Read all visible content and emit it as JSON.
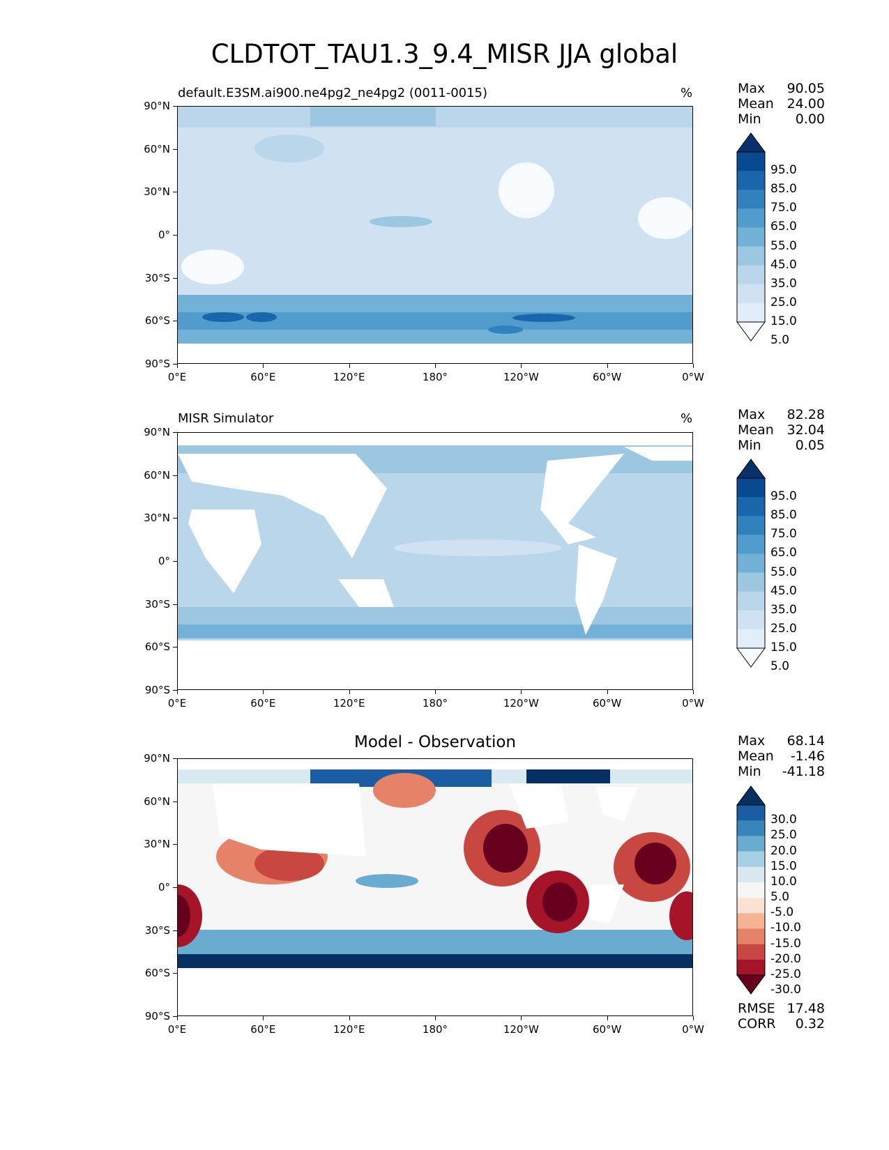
{
  "title": "CLDTOT_TAU1.3_9.4_MISR JJA global",
  "colors": {
    "blues": [
      "#f7fbff",
      "#e1edf8",
      "#d0e2f2",
      "#b9d6ea",
      "#9bc8e0",
      "#73b2d8",
      "#519ccc",
      "#3181bd",
      "#1966ad",
      "#084a91",
      "#08306b"
    ],
    "diverging": [
      "#67001f",
      "#a51429",
      "#c94741",
      "#e58267",
      "#f6b394",
      "#fbe3d4",
      "#f6f6f6",
      "#d9e9f1",
      "#a7d0e4",
      "#6aacd0",
      "#3885bc",
      "#1a5da3",
      "#053061"
    ]
  },
  "axes": {
    "lat_labels": [
      "90°N",
      "60°N",
      "30°N",
      "0°",
      "30°S",
      "60°S",
      "90°S"
    ],
    "lon_labels": [
      "0°E",
      "60°E",
      "120°E",
      "180°",
      "120°W",
      "60°W",
      "0°W"
    ]
  },
  "panels": [
    {
      "left_title": "default.E3SM.ai900.ne4pg2_ne4pg2 (0011-0015)",
      "center_title": "",
      "unit": "%",
      "stats": [
        {
          "label": "Max",
          "value": "90.05"
        },
        {
          "label": "Mean",
          "value": "24.00"
        },
        {
          "label": "Min",
          "value": "0.00"
        }
      ],
      "colorbar_labels": [
        "95.0",
        "85.0",
        "75.0",
        "65.0",
        "55.0",
        "45.0",
        "35.0",
        "25.0",
        "15.0",
        "5.0"
      ]
    },
    {
      "left_title": "MISR Simulator",
      "center_title": "",
      "unit": "%",
      "stats": [
        {
          "label": "Max",
          "value": "82.28"
        },
        {
          "label": "Mean",
          "value": "32.04"
        },
        {
          "label": "Min",
          "value": "0.05"
        }
      ],
      "colorbar_labels": [
        "95.0",
        "85.0",
        "75.0",
        "65.0",
        "55.0",
        "45.0",
        "35.0",
        "25.0",
        "15.0",
        "5.0"
      ]
    },
    {
      "left_title": "",
      "center_title": "Model - Observation",
      "unit": "",
      "stats": [
        {
          "label": "Max",
          "value": "68.14"
        },
        {
          "label": "Mean",
          "value": "-1.46"
        },
        {
          "label": "Min",
          "value": "-41.18"
        }
      ],
      "colorbar_labels": [
        "30.0",
        "25.0",
        "20.0",
        "15.0",
        "10.0",
        "5.0",
        "-5.0",
        "-10.0",
        "-15.0",
        "-20.0",
        "-25.0",
        "-30.0"
      ],
      "metrics": [
        {
          "label": "RMSE",
          "value": "17.48"
        },
        {
          "label": "CORR",
          "value": "0.32"
        }
      ]
    }
  ]
}
